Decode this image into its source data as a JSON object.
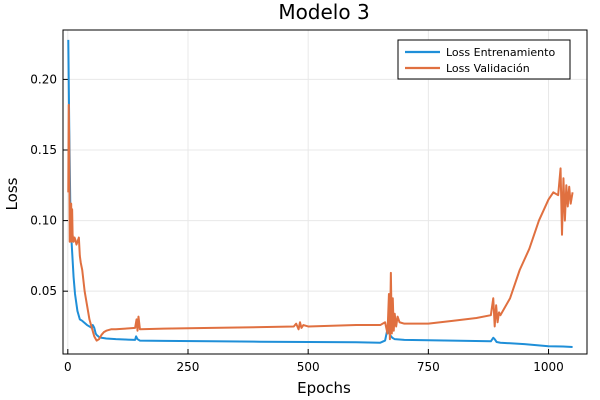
{
  "chart_data": {
    "type": "line",
    "title": "Modelo 3",
    "xlabel": "Epochs",
    "ylabel": "Loss",
    "xlim": [
      -10,
      1080
    ],
    "ylim": [
      0.0055,
      0.235
    ],
    "xticks": [
      0,
      250,
      500,
      750,
      1000
    ],
    "yticks": [
      0.05,
      0.1,
      0.15,
      0.2
    ],
    "xtick_labels": [
      "0",
      "250",
      "500",
      "750",
      "1000"
    ],
    "ytick_labels": [
      "0.05",
      "0.10",
      "0.15",
      "0.20"
    ],
    "grid": true,
    "legend_position": "top-right",
    "series": [
      {
        "name": "Loss Entrenamiento",
        "color": "#1f8fd8",
        "x": [
          1,
          3,
          5,
          7,
          9,
          12,
          15,
          20,
          25,
          30,
          40,
          50,
          52,
          55,
          58,
          60,
          65,
          70,
          80,
          100,
          140,
          142,
          145,
          150,
          200,
          300,
          400,
          500,
          600,
          650,
          660,
          663,
          666,
          670,
          675,
          680,
          700,
          800,
          880,
          885,
          888,
          892,
          900,
          950,
          1000,
          1030,
          1050
        ],
        "y": [
          0.228,
          0.165,
          0.115,
          0.09,
          0.078,
          0.06,
          0.048,
          0.036,
          0.03,
          0.029,
          0.026,
          0.024,
          0.026,
          0.024,
          0.02,
          0.019,
          0.0175,
          0.017,
          0.0165,
          0.016,
          0.0155,
          0.018,
          0.016,
          0.015,
          0.0148,
          0.0145,
          0.0142,
          0.014,
          0.0138,
          0.0135,
          0.015,
          0.02,
          0.025,
          0.019,
          0.017,
          0.016,
          0.0155,
          0.015,
          0.0145,
          0.017,
          0.016,
          0.014,
          0.0135,
          0.0125,
          0.011,
          0.0108,
          0.0105
        ]
      },
      {
        "name": "Loss Validación",
        "color": "#e07040",
        "x": [
          1,
          2,
          3,
          4,
          5,
          6,
          7,
          8,
          9,
          10,
          12,
          14,
          16,
          18,
          20,
          23,
          25,
          27,
          30,
          35,
          40,
          45,
          50,
          55,
          60,
          65,
          70,
          75,
          80,
          90,
          100,
          120,
          140,
          143,
          145,
          147,
          150,
          200,
          300,
          400,
          470,
          475,
          480,
          483,
          486,
          490,
          500,
          600,
          650,
          660,
          665,
          668,
          670,
          672,
          674,
          676,
          678,
          680,
          683,
          686,
          690,
          700,
          750,
          800,
          850,
          880,
          885,
          888,
          891,
          894,
          897,
          900,
          920,
          940,
          960,
          980,
          1000,
          1010,
          1020,
          1025,
          1028,
          1031,
          1034,
          1037,
          1040,
          1043,
          1046,
          1050
        ],
        "y": [
          0.12,
          0.182,
          0.15,
          0.085,
          0.1,
          0.09,
          0.112,
          0.085,
          0.108,
          0.09,
          0.085,
          0.088,
          0.086,
          0.083,
          0.085,
          0.088,
          0.075,
          0.07,
          0.065,
          0.05,
          0.04,
          0.03,
          0.024,
          0.018,
          0.015,
          0.016,
          0.019,
          0.021,
          0.022,
          0.023,
          0.023,
          0.0235,
          0.024,
          0.03,
          0.022,
          0.032,
          0.023,
          0.0235,
          0.024,
          0.0245,
          0.025,
          0.027,
          0.023,
          0.028,
          0.024,
          0.026,
          0.025,
          0.026,
          0.026,
          0.028,
          0.02,
          0.048,
          0.016,
          0.063,
          0.02,
          0.045,
          0.022,
          0.034,
          0.025,
          0.032,
          0.028,
          0.027,
          0.027,
          0.029,
          0.031,
          0.033,
          0.045,
          0.025,
          0.04,
          0.028,
          0.035,
          0.033,
          0.045,
          0.065,
          0.08,
          0.1,
          0.115,
          0.12,
          0.118,
          0.137,
          0.09,
          0.13,
          0.1,
          0.125,
          0.11,
          0.124,
          0.112,
          0.12
        ]
      }
    ]
  }
}
